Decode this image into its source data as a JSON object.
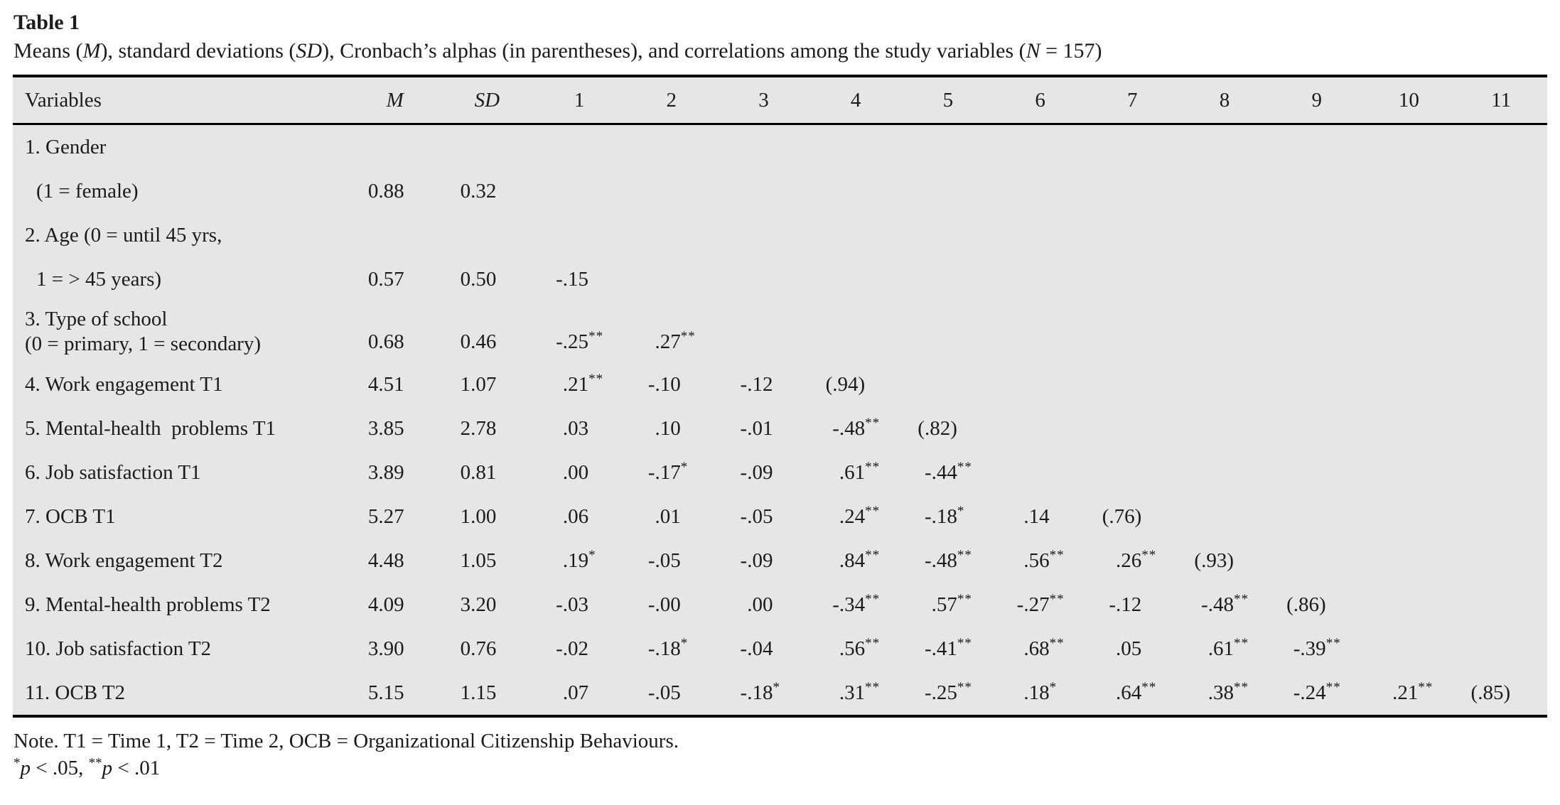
{
  "colors": {
    "table_bg": "#e6e6e6",
    "text": "#1b1b1b",
    "rule": "#000000"
  },
  "title": "Table 1",
  "subtitle_runs": [
    {
      "t": "Means ("
    },
    {
      "t": "M",
      "i": true
    },
    {
      "t": "), standard deviations ("
    },
    {
      "t": "SD",
      "i": true
    },
    {
      "t": "), Cronbach’s alphas (in parentheses), and correlations among the study variables ("
    },
    {
      "t": "N",
      "i": true
    },
    {
      "t": " = 157)"
    }
  ],
  "table": {
    "col_headers": {
      "variables": "Variables",
      "m": "M",
      "sd": "SD",
      "nums": [
        "1",
        "2",
        "3",
        "4",
        "5",
        "6",
        "7",
        "8",
        "9",
        "10",
        "11"
      ]
    },
    "rows": [
      {
        "label": "1. Gender",
        "indent": false,
        "values": []
      },
      {
        "label": "(1 = female)",
        "indent": true,
        "values": [
          "0.88",
          "0.32"
        ]
      },
      {
        "label": "2. Age (0 = until 45 yrs,",
        "indent": false,
        "values": []
      },
      {
        "label": "1 = > 45 years)",
        "indent": true,
        "values": [
          "0.57",
          "0.50",
          "-.15"
        ]
      },
      {
        "label": "3. Type of school\n(0 = primary, 1 = secondary)",
        "indent": false,
        "values": [
          "0.68",
          "0.46",
          "-.25**",
          ".27**"
        ]
      },
      {
        "label": "4. Work engagement T1",
        "indent": false,
        "values": [
          "4.51",
          "1.07",
          ".21**",
          "-.10",
          "-.12",
          "(.94)"
        ]
      },
      {
        "label": "5. Mental-health  problems T1",
        "indent": false,
        "values": [
          "3.85",
          "2.78",
          ".03",
          ".10",
          "-.01",
          "-.48**",
          "(.82)"
        ]
      },
      {
        "label": "6. Job satisfaction T1",
        "indent": false,
        "values": [
          "3.89",
          "0.81",
          ".00",
          "-.17*",
          "-.09",
          ".61**",
          "-.44**"
        ]
      },
      {
        "label": "7. OCB T1",
        "indent": false,
        "values": [
          "5.27",
          "1.00",
          ".06",
          ".01",
          "-.05",
          ".24**",
          "-.18*",
          ".14",
          "(.76)"
        ]
      },
      {
        "label": "8. Work engagement T2",
        "indent": false,
        "values": [
          "4.48",
          "1.05",
          ".19*",
          "-.05",
          "-.09",
          ".84**",
          "-.48**",
          ".56**",
          ".26**",
          "(.93)"
        ]
      },
      {
        "label": "9. Mental-health problems T2",
        "indent": false,
        "values": [
          "4.09",
          "3.20",
          "-.03",
          "-.00",
          ".00",
          "-.34**",
          ".57**",
          "-.27**",
          "-.12",
          "-.48**",
          "(.86)"
        ]
      },
      {
        "label": "10. Job satisfaction T2",
        "indent": false,
        "values": [
          "3.90",
          "0.76",
          "-.02",
          "-.18*",
          "-.04",
          ".56**",
          "-.41**",
          ".68**",
          ".05",
          ".61**",
          "-.39**"
        ]
      },
      {
        "label": "11. OCB T2",
        "indent": false,
        "values": [
          "5.15",
          "1.15",
          ".07",
          "-.05",
          "-.18*",
          ".31**",
          "-.25**",
          ".18*",
          ".64**",
          ".38**",
          "-.24**",
          ".21**",
          "(.85)"
        ]
      }
    ]
  },
  "footnotes": {
    "note_runs": [
      {
        "t": "Note. T1 = Time 1, T2 = Time 2, OCB = Organizational Citizenship Behaviours."
      }
    ],
    "sig_runs": [
      {
        "t": "*",
        "sup": true
      },
      {
        "t": "p",
        "i": true
      },
      {
        "t": " < .05, "
      },
      {
        "t": "**",
        "sup": true
      },
      {
        "t": "p",
        "i": true
      },
      {
        "t": " < .01"
      }
    ]
  }
}
